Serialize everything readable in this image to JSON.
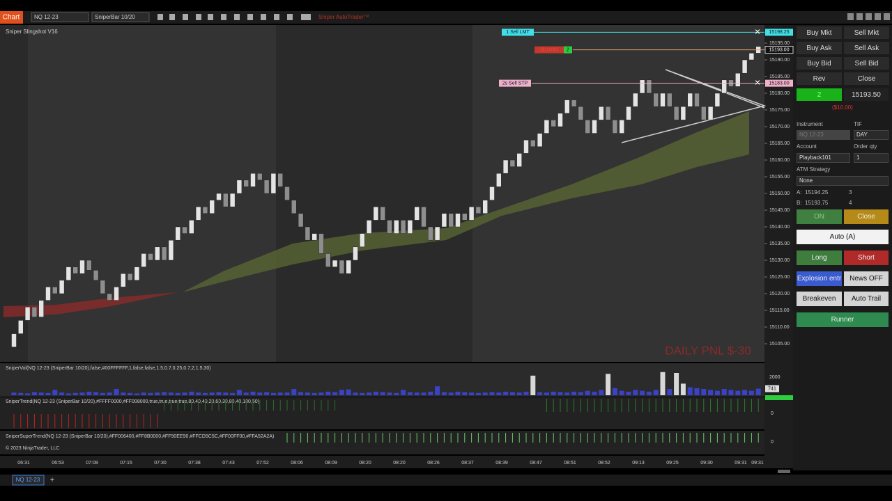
{
  "toolbar": {
    "app_label": "Chart",
    "instrument": "NQ 12-23",
    "bar_type": "SniperBar 10/20",
    "strategy_label": "Sniper AutoTrader™"
  },
  "chart_data": {
    "type": "candlestick",
    "title": "Sniper Slingshot V16",
    "open": 15104,
    "closes": [
      15108,
      15112,
      15116,
      15113,
      15118,
      15122,
      15120,
      15124,
      15128,
      15126,
      15130,
      15127,
      15124,
      15120,
      15118,
      15122,
      15126,
      15124,
      15128,
      15132,
      15130,
      15134,
      15130,
      15136,
      15140,
      15138,
      15142,
      15146,
      15144,
      15148,
      15150,
      15146,
      15150,
      15154,
      15152,
      15156,
      15154,
      15150,
      15156,
      15152,
      15148,
      15144,
      15140,
      15136,
      15138,
      15132,
      15128,
      15130,
      15126,
      15130,
      15134,
      15138,
      15142,
      15146,
      15142,
      15138,
      15142,
      15138,
      15142,
      15146,
      15140,
      15136,
      15140,
      15144,
      15140,
      15144,
      15142,
      15146,
      15144,
      15148,
      15152,
      15156,
      15160,
      15158,
      15162,
      15166,
      15164,
      15168,
      15172,
      15170,
      15174,
      15178,
      15176,
      15172,
      15168,
      15172,
      15176,
      15172,
      15168,
      15172,
      15176,
      15180,
      15184,
      15180,
      15176,
      15180,
      15176,
      15172,
      15176,
      15180,
      15176,
      15172,
      15176,
      15180,
      15184,
      15182,
      15186,
      15190,
      15192,
      15194
    ],
    "ylim": [
      15100,
      15200
    ],
    "yticks": [
      {
        "value": 15105,
        "label": "15105.00"
      },
      {
        "value": 15110,
        "label": "15110.00"
      },
      {
        "value": 15115,
        "label": "15115.00"
      },
      {
        "value": 15120,
        "label": "15120.00"
      },
      {
        "value": 15125,
        "label": "15125.00"
      },
      {
        "value": 15130,
        "label": "15130.00"
      },
      {
        "value": 15135,
        "label": "15135.00"
      },
      {
        "value": 15140,
        "label": "15140.00"
      },
      {
        "value": 15145,
        "label": "15145.00"
      },
      {
        "value": 15150,
        "label": "15150.00"
      },
      {
        "value": 15155,
        "label": "15155.00"
      },
      {
        "value": 15160,
        "label": "15160.00"
      },
      {
        "value": 15165,
        "label": "15165.00"
      },
      {
        "value": 15170,
        "label": "15170.00"
      },
      {
        "value": 15175,
        "label": "15175.00"
      },
      {
        "value": 15180,
        "label": "15180.00"
      },
      {
        "value": 15185,
        "label": "15185.00"
      },
      {
        "value": 15190,
        "label": "15190.00"
      },
      {
        "value": 15195,
        "label": "15195.00"
      }
    ],
    "x_labels": [
      "06:31",
      "06:53",
      "07:08",
      "07:15",
      "07:30",
      "07:38",
      "07:43",
      "07:52",
      "08:06",
      "08:09",
      "08:20",
      "08:20",
      "08:26",
      "08:37",
      "08:39",
      "08:47",
      "08:51",
      "08:52",
      "09:13",
      "09:25",
      "09:30",
      "09:31",
      "09:31"
    ],
    "orders": [
      {
        "label": "1  Sell LMT",
        "price": 15198.25
      },
      {
        "label": "($10.00)",
        "qty": "2",
        "price": {
          "value": 15193,
          "label": "15193.00"
        }
      },
      {
        "label": "2s  Sell STP",
        "price": {
          "value": 15183,
          "label": "15183.00"
        }
      }
    ],
    "pnl": "DAILY PNL $-30",
    "volume": {
      "title": "SniperVol(NQ 12-23 (SniperBar 10/20),false,#00FFFFFF,1,false,false,1.5,0.7,0.25,0.7,2,1.5,30)",
      "values": [
        300,
        250,
        200,
        350,
        300,
        250,
        600,
        300,
        200,
        250,
        300,
        400,
        350,
        250,
        300,
        700,
        300,
        250,
        200,
        300,
        250,
        300,
        350,
        300,
        250,
        300,
        400,
        300,
        250,
        300,
        350,
        300,
        250,
        600,
        300,
        400,
        300,
        350,
        250,
        300,
        300,
        700,
        350,
        300,
        250,
        300,
        400,
        350,
        600,
        650,
        300,
        250,
        300,
        400,
        350,
        300,
        250,
        600,
        350,
        300,
        300,
        400,
        1000,
        350,
        300,
        400,
        350,
        300,
        250,
        300,
        350,
        300,
        400,
        350,
        300,
        400,
        2200,
        350,
        300,
        400,
        350,
        300,
        400,
        350,
        500,
        400,
        600,
        2400,
        800,
        500,
        400,
        600,
        500,
        400,
        600,
        2600,
        700,
        2500,
        1300,
        900,
        800,
        700,
        600,
        500,
        700,
        600,
        500,
        600,
        500,
        741
      ],
      "ylim": [
        0,
        2500
      ],
      "yticks": [
        2000
      ]
    },
    "trend": {
      "title": "SniperTrend(NQ 12-23 (SniperBar 10/20),#FFFF0000,#FF008000,true,true,true,true,80,40,40,20,60,30,80,40,100,50)",
      "yticks": [
        0
      ]
    },
    "supertrend": {
      "title": "SniperSuperTrend(NQ 12-23 (SniperBar 10/20),#FF006400,#FF8B0000,#FF90EE90,#FFCD5C5C,#FF00FF00,#FFA52A2A)",
      "yticks": [
        0
      ]
    },
    "copyright": "© 2023 NinjaTrader, LLC"
  },
  "order_panel": {
    "buttons": [
      [
        "Buy Mkt",
        "Sell Mkt"
      ],
      [
        "Buy Ask",
        "Sell Ask"
      ],
      [
        "Buy Bid",
        "Sell Bid"
      ],
      [
        "Rev",
        "Close"
      ]
    ],
    "position_qty": "2",
    "position_price": "15193.50",
    "unrealized": "($10.00)",
    "instrument_label": "Instrument",
    "instrument": "NQ 12-23",
    "tif_label": "TIF",
    "tif": "DAY",
    "account_label": "Account",
    "account": "Playback101",
    "qty_label": "Order qty",
    "qty": "1",
    "atm_label": "ATM Strategy",
    "atm": "None",
    "ask_label": "A:",
    "ask": "15194.25",
    "ask_size": "3",
    "bid_label": "B:",
    "bid": "15193.75",
    "bid_size": "4"
  },
  "strategy_panel": {
    "on": "ON",
    "close": "Close",
    "auto": "Auto (A)",
    "long": "Long",
    "short": "Short",
    "explosion": "Explosion entr",
    "news": "News OFF",
    "breakeven": "Breakeven",
    "auto_trail": "Auto Trail",
    "runner": "Runner"
  },
  "tabs": {
    "active": "NQ 12-23",
    "add": "+"
  }
}
